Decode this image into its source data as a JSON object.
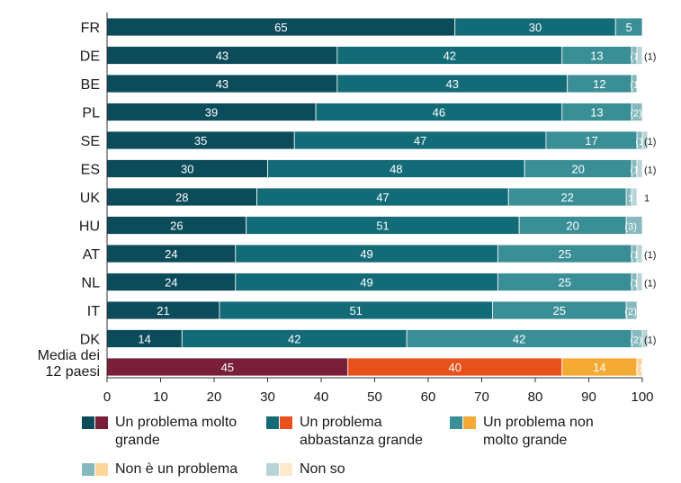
{
  "chart_data": {
    "type": "bar",
    "orientation": "horizontal",
    "stacked": true,
    "xlim": [
      0,
      100
    ],
    "xticks": [
      0,
      10,
      20,
      30,
      40,
      50,
      60,
      70,
      80,
      90,
      100
    ],
    "grid": false,
    "categories": [
      "FR",
      "DE",
      "BE",
      "PL",
      "SE",
      "ES",
      "UK",
      "HU",
      "AT",
      "NL",
      "IT",
      "DK",
      "Media dei 12 paesi"
    ],
    "category_lines": [
      [
        "FR"
      ],
      [
        "DE"
      ],
      [
        "BE"
      ],
      [
        "PL"
      ],
      [
        "SE"
      ],
      [
        "ES"
      ],
      [
        "UK"
      ],
      [
        "HU"
      ],
      [
        "AT"
      ],
      [
        "NL"
      ],
      [
        "IT"
      ],
      [
        "DK"
      ],
      [
        "Media dei",
        "12 paesi"
      ]
    ],
    "series": [
      {
        "name": "Un problema molto grande",
        "values": [
          65,
          43,
          43,
          39,
          35,
          30,
          28,
          26,
          24,
          24,
          21,
          14,
          45
        ]
      },
      {
        "name": "Un problema abbastanza grande",
        "values": [
          30,
          42,
          43,
          46,
          47,
          48,
          47,
          51,
          49,
          49,
          51,
          42,
          40
        ]
      },
      {
        "name": "Un problema non molto grande",
        "values": [
          5,
          13,
          12,
          13,
          17,
          20,
          22,
          20,
          25,
          25,
          25,
          42,
          14
        ]
      },
      {
        "name": "Non è un problema",
        "values": [
          0,
          1,
          1,
          2,
          1,
          1,
          1,
          3,
          1,
          1,
          2,
          2,
          1
        ]
      },
      {
        "name": "Non so",
        "values": [
          0,
          1,
          0,
          0,
          1,
          1,
          1,
          0,
          1,
          1,
          0,
          1,
          0
        ]
      }
    ],
    "data_labels": [
      [
        "65",
        "30",
        "5",
        "",
        ""
      ],
      [
        "43",
        "42",
        "13",
        "(1)",
        "(1)"
      ],
      [
        "43",
        "43",
        "12",
        "(1)",
        ""
      ],
      [
        "39",
        "46",
        "13",
        "(2)",
        ""
      ],
      [
        "35",
        "47",
        "17",
        "(1)",
        "(1)"
      ],
      [
        "30",
        "48",
        "20",
        "(1)",
        "(1)"
      ],
      [
        "28",
        "47",
        "22",
        "1",
        "1"
      ],
      [
        "26",
        "51",
        "20",
        "(3)",
        ""
      ],
      [
        "24",
        "49",
        "25",
        "(1)",
        "(1)"
      ],
      [
        "24",
        "49",
        "25",
        "(1)",
        "(1)"
      ],
      [
        "21",
        "51",
        "25",
        "(2)",
        ""
      ],
      [
        "14",
        "42",
        "42",
        "(2)",
        "(1)"
      ],
      [
        "45",
        "40",
        "14",
        "(1)",
        ""
      ]
    ],
    "colors": {
      "country": [
        "#0c4b5a",
        "#136b78",
        "#3a8f97",
        "#86b9bd",
        "#b8d4d6"
      ],
      "average": [
        "#7a1f3a",
        "#e8501c",
        "#f5aa36",
        "#fcd59a",
        "#fde9cc"
      ],
      "label_text": "#ffffff",
      "axis_text": "#1a1a1a"
    },
    "legend": {
      "placement": "bottom",
      "items": [
        {
          "label": "Un problema molto grande",
          "lines": [
            "Un problema molto",
            "grande"
          ]
        },
        {
          "label": "Un problema abbastanza grande",
          "lines": [
            "Un problema",
            "abbastanza grande"
          ]
        },
        {
          "label": "Un problema non molto grande",
          "lines": [
            "Un problema non",
            "molto grande"
          ]
        },
        {
          "label": "Non è un problema",
          "lines": [
            "Non è un problema"
          ]
        },
        {
          "label": "Non so",
          "lines": [
            "Non so"
          ]
        }
      ]
    }
  }
}
